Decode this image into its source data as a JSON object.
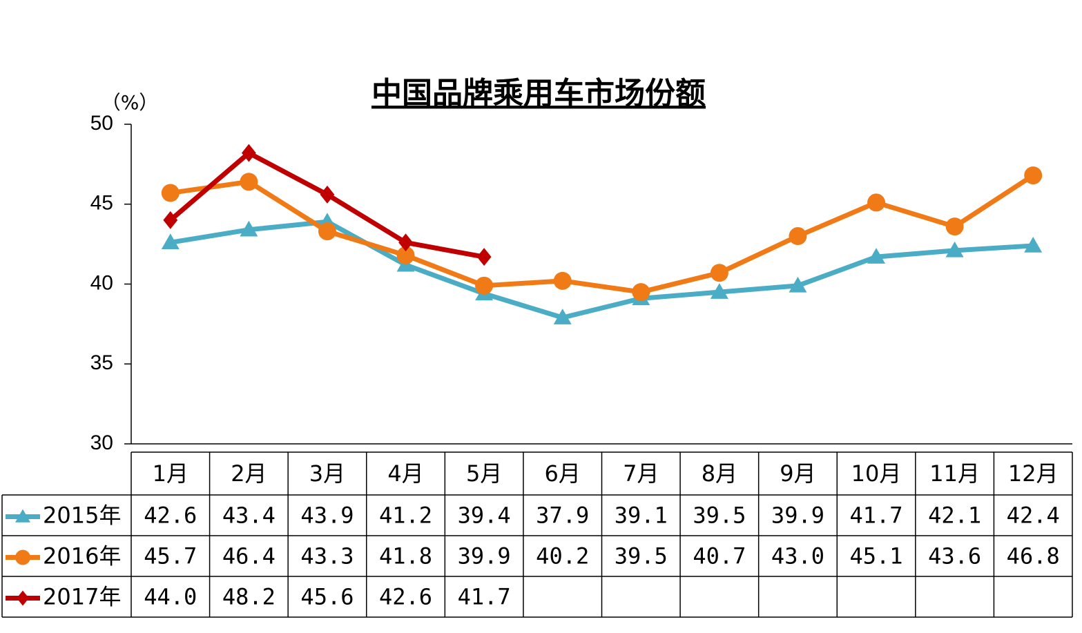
{
  "chart_data": {
    "type": "line",
    "title": "中国品牌乘用车市场份额",
    "y_axis_label": "（%）",
    "categories": [
      "1月",
      "2月",
      "3月",
      "4月",
      "5月",
      "6月",
      "7月",
      "8月",
      "9月",
      "10月",
      "11月",
      "12月"
    ],
    "series": [
      {
        "name": "2015年",
        "color": "#4bacc6",
        "marker": "triangle",
        "values": [
          42.6,
          43.4,
          43.9,
          41.2,
          39.4,
          37.9,
          39.1,
          39.5,
          39.9,
          41.7,
          42.1,
          42.4
        ],
        "value_labels": [
          "42.6",
          "43.4",
          "43.9",
          "41.2",
          "39.4",
          "37.9",
          "39.1",
          "39.5",
          "39.9",
          "41.7",
          "42.1",
          "42.4"
        ]
      },
      {
        "name": "2016年",
        "color": "#f07b16",
        "marker": "circle",
        "values": [
          45.7,
          46.4,
          43.3,
          41.8,
          39.9,
          40.2,
          39.5,
          40.7,
          43.0,
          45.1,
          43.6,
          46.8
        ],
        "value_labels": [
          "45.7",
          "46.4",
          "43.3",
          "41.8",
          "39.9",
          "40.2",
          "39.5",
          "40.7",
          "43.0",
          "45.1",
          "43.6",
          "46.8"
        ]
      },
      {
        "name": "2017年",
        "color": "#c00000",
        "marker": "diamond",
        "values": [
          44.0,
          48.2,
          45.6,
          42.6,
          41.7,
          null,
          null,
          null,
          null,
          null,
          null,
          null
        ],
        "value_labels": [
          "44.0",
          "48.2",
          "45.6",
          "42.6",
          "41.7",
          null,
          null,
          null,
          null,
          null,
          null,
          null
        ]
      }
    ],
    "ylim": [
      30,
      50
    ],
    "yticks": [
      30,
      35,
      40,
      45,
      50
    ],
    "grid": false
  }
}
